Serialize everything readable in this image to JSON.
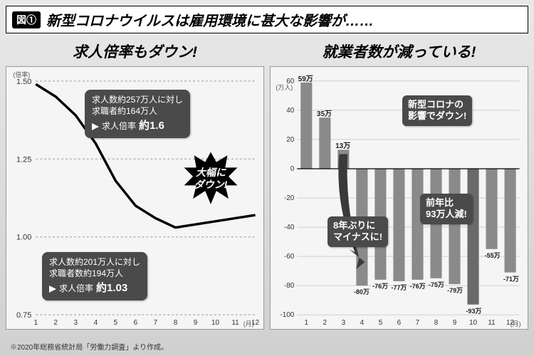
{
  "header": {
    "figure_label": "図①",
    "title": "新型コロナウイルスは雇用環境に甚大な影響が……"
  },
  "footnote": "※2020年総務省統計局「労働力調査」より作成。",
  "left_chart": {
    "title": "求人倍率もダウン!",
    "type": "line",
    "y_axis_label": "(倍率)",
    "x_axis_label": "(月)",
    "ylim": [
      0.75,
      1.5
    ],
    "yticks": [
      0.75,
      1.0,
      1.25,
      1.5
    ],
    "xticks": [
      1,
      2,
      3,
      4,
      5,
      6,
      7,
      8,
      9,
      10,
      11,
      12
    ],
    "line_color": "#000000",
    "line_width": 3.5,
    "grid_color": "#999999",
    "background_color": "#f5f5f5",
    "values": [
      1.49,
      1.45,
      1.39,
      1.3,
      1.18,
      1.1,
      1.06,
      1.03,
      1.04,
      1.05,
      1.06,
      1.07
    ],
    "annotation_top": {
      "line1": "求人数約257万人に対し",
      "line2": "求職者約164万人",
      "arrow_label": "求人倍率",
      "value": "約1.6"
    },
    "annotation_bottom": {
      "line1": "求人数約201万人に対し",
      "line2": "求職者数約194万人",
      "arrow_label": "求人倍率",
      "value": "約1.03"
    },
    "burst_label": "大幅に\nダウン!",
    "burst_color": "#000000"
  },
  "right_chart": {
    "title": "就業者数が減っている!",
    "type": "bar",
    "y_axis_label": "(万人)",
    "x_axis_label": "(月)",
    "ylim": [
      -100,
      60
    ],
    "yticks": [
      -100,
      -80,
      -60,
      -40,
      -20,
      0,
      20,
      40,
      60
    ],
    "xticks": [
      1,
      2,
      3,
      4,
      5,
      6,
      7,
      8,
      9,
      10,
      11,
      12
    ],
    "bar_color": "#8a8a8a",
    "highlight_bar_color": "#6a6a6a",
    "background_color": "#f5f5f5",
    "grid_color": "#aaaaaa",
    "values": [
      59,
      35,
      13,
      -80,
      -76,
      -77,
      -76,
      -75,
      -79,
      -93,
      -55,
      -71
    ],
    "value_labels": [
      "59万",
      "35万",
      "13万",
      "-80万",
      "-76万",
      "-77万",
      "-76万",
      "-75万",
      "-79万",
      "-93万",
      "-55万",
      "-71万"
    ],
    "annotation_1": "新型コロナの\n影響でダウン!",
    "annotation_2": "8年ぶりに\nマイナスに!",
    "annotation_3": "前年比\n93万人減!"
  },
  "colors": {
    "panel_bg_top": "#e8e8e8",
    "panel_bg_bottom": "#d0d0d0",
    "bubble_bg": "#4a4a4a",
    "text": "#000000"
  }
}
